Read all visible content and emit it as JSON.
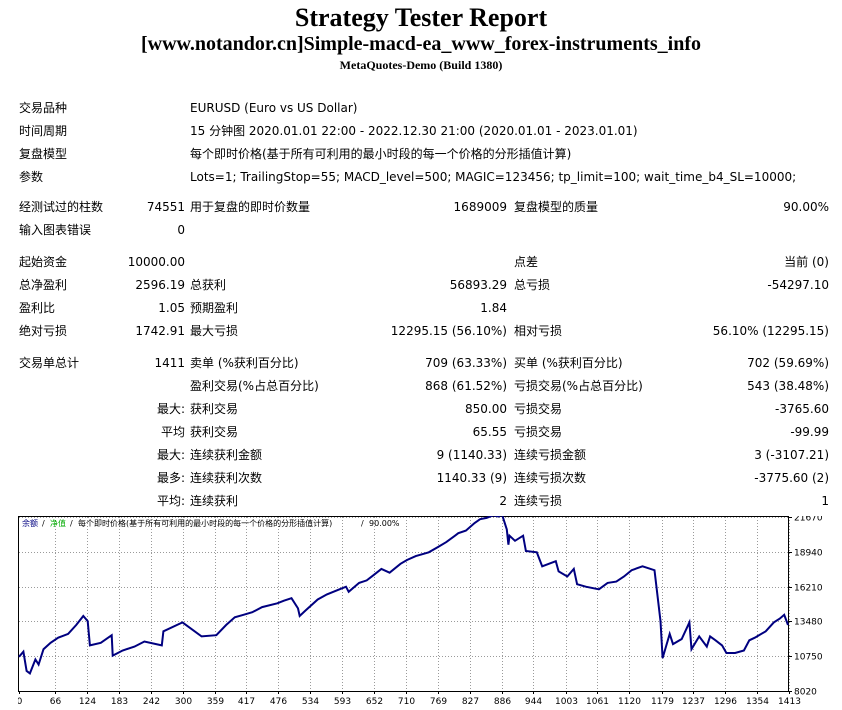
{
  "header": {
    "title": "Strategy Tester Report",
    "subtitle": "[www.notandor.cn]Simple-macd-ea_www_forex-instruments_info",
    "build": "MetaQuotes-Demo (Build 1380)"
  },
  "settings": {
    "symbol_label": "交易品种",
    "symbol_value": "EURUSD (Euro vs US Dollar)",
    "period_label": "时间周期",
    "period_value": "15 分钟图 2020.01.01 22:00 - 2022.12.30 21:00 (2020.01.01 - 2023.01.01)",
    "model_label": "复盘模型",
    "model_value": "每个即时价格(基于所有可利用的最小时段的每一个价格的分形插值计算)",
    "params_label": "参数",
    "params_value": "Lots=1; TrailingStop=55; MACD_level=500; MAGIC=123456; tp_limit=100; wait_time_b4_SL=10000;"
  },
  "test": {
    "bars_label": "经测试过的柱数",
    "bars_value": "74551",
    "ticks_label": "用于复盘的即时价数量",
    "ticks_value": "1689009",
    "quality_label": "复盘模型的质量",
    "quality_value": "90.00%",
    "errors_label": "输入图表错误",
    "errors_value": "0"
  },
  "results": {
    "deposit_label": "起始资金",
    "deposit_value": "10000.00",
    "spread_label": "点差",
    "spread_value": "当前 (0)",
    "net_label": "总净盈利",
    "net_value": "2596.19",
    "gross_profit_label": "总获利",
    "gross_profit_value": "56893.29",
    "gross_loss_label": "总亏损",
    "gross_loss_value": "-54297.10",
    "pf_label": "盈利比",
    "pf_value": "1.05",
    "expected_label": "预期盈利",
    "expected_value": "1.84",
    "abs_dd_label": "绝对亏损",
    "abs_dd_value": "1742.91",
    "max_dd_label": "最大亏损",
    "max_dd_value": "12295.15 (56.10%)",
    "rel_dd_label": "相对亏损",
    "rel_dd_value": "56.10% (12295.15)"
  },
  "trades": {
    "total_label": "交易单总计",
    "total_value": "1411",
    "short_label": "卖单 (%获利百分比)",
    "short_value": "709 (63.33%)",
    "long_label": "买单 (%获利百分比)",
    "long_value": "702 (59.69%)",
    "win_label": "盈利交易(%占总百分比)",
    "win_value": "868 (61.52%)",
    "loss_label": "亏损交易(%占总百分比)",
    "loss_value": "543 (38.48%)",
    "largest_label": "最大:",
    "largest_win_label": "获利交易",
    "largest_win_value": "850.00",
    "largest_loss_label": "亏损交易",
    "largest_loss_value": "-3765.60",
    "average_label": "平均",
    "avg_win_label": "获利交易",
    "avg_win_value": "65.55",
    "avg_loss_label": "亏损交易",
    "avg_loss_value": "-99.99",
    "max_label": "最大:",
    "max_consec_win_label": "连续获利金额",
    "max_consec_win_value": "9 (1140.33)",
    "max_consec_loss_label": "连续亏损金额",
    "max_consec_loss_value": "3 (-3107.21)",
    "most_label": "最多:",
    "most_consec_win_label": "连续获利次数",
    "most_consec_win_value": "1140.33 (9)",
    "most_consec_loss_label": "连续亏损次数",
    "most_consec_loss_value": "-3775.60 (2)",
    "avg2_label": "平均:",
    "avg_consec_win_label": "连续获利",
    "avg_consec_win_value": "2",
    "avg_consec_loss_label": "连续亏损",
    "avg_consec_loss_value": "1"
  },
  "chart_data": {
    "type": "line",
    "legend": {
      "balance": "余额",
      "sep1": "/",
      "equity": "净值",
      "sep2": "/",
      "model": "每个即时价格(基于所有可利用的最小时段的每一个价格的分形插值计算)",
      "sep3": "/",
      "quality": "90.00%"
    },
    "x_ticks": [
      "0",
      "66",
      "124",
      "183",
      "242",
      "300",
      "359",
      "417",
      "476",
      "534",
      "593",
      "652",
      "710",
      "769",
      "827",
      "886",
      "944",
      "1003",
      "1061",
      "1120",
      "1179",
      "1237",
      "1296",
      "1354",
      "1413"
    ],
    "y_ticks": [
      "8020",
      "10750",
      "13480",
      "16210",
      "18940",
      "21670"
    ],
    "xlim": [
      0,
      1411
    ],
    "ylim": [
      8020,
      21670
    ],
    "grid": true,
    "series": [
      {
        "name": "余额",
        "color": "#000080",
        "x": [
          0,
          8,
          14,
          20,
          30,
          36,
          45,
          58,
          72,
          90,
          105,
          118,
          126,
          130,
          150,
          170,
          172,
          190,
          212,
          230,
          262,
          265,
          300,
          335,
          362,
          380,
          396,
          412,
          428,
          446,
          474,
          486,
          500,
          512,
          515,
          525,
          548,
          565,
          588,
          600,
          605,
          624,
          638,
          650,
          665,
          680,
          700,
          712,
          728,
          752,
          768,
          784,
          800,
          806,
          820,
          836,
          846,
          858,
          870,
          880,
          886,
          895,
          898,
          900,
          910,
          925,
          930,
          950,
          960,
          985,
          990,
          1006,
          1018,
          1024,
          1040,
          1064,
          1080,
          1096,
          1110,
          1124,
          1144,
          1166,
          1177,
          1181,
          1194,
          1200,
          1216,
          1230,
          1234,
          1248,
          1262,
          1268,
          1278,
          1290,
          1298,
          1314,
          1330,
          1340,
          1350,
          1370,
          1385,
          1396,
          1404,
          1411
        ],
        "y": [
          10700,
          11100,
          9600,
          9400,
          10500,
          10100,
          11300,
          11800,
          12200,
          12500,
          13200,
          13900,
          13500,
          11600,
          11800,
          12400,
          10800,
          11200,
          11500,
          11900,
          11600,
          12700,
          13400,
          12300,
          12400,
          13200,
          13800,
          14000,
          14200,
          14600,
          14900,
          15100,
          15300,
          14500,
          13900,
          14300,
          15200,
          15600,
          16000,
          16200,
          15800,
          16500,
          16700,
          17100,
          17600,
          17300,
          18000,
          18300,
          18600,
          18900,
          19300,
          19700,
          20200,
          20400,
          20600,
          21200,
          21500,
          21600,
          21800,
          21700,
          21900,
          20700,
          19500,
          20200,
          19800,
          20200,
          19000,
          18900,
          17800,
          18200,
          17400,
          17000,
          17600,
          16400,
          16200,
          16000,
          16500,
          16600,
          17000,
          17500,
          17800,
          17500,
          13500,
          10600,
          12500,
          11700,
          12100,
          13400,
          11300,
          12300,
          11500,
          12300,
          12000,
          11600,
          11000,
          11000,
          11200,
          12000,
          12200,
          12700,
          13400,
          13700,
          14000,
          13200
        ]
      }
    ]
  }
}
